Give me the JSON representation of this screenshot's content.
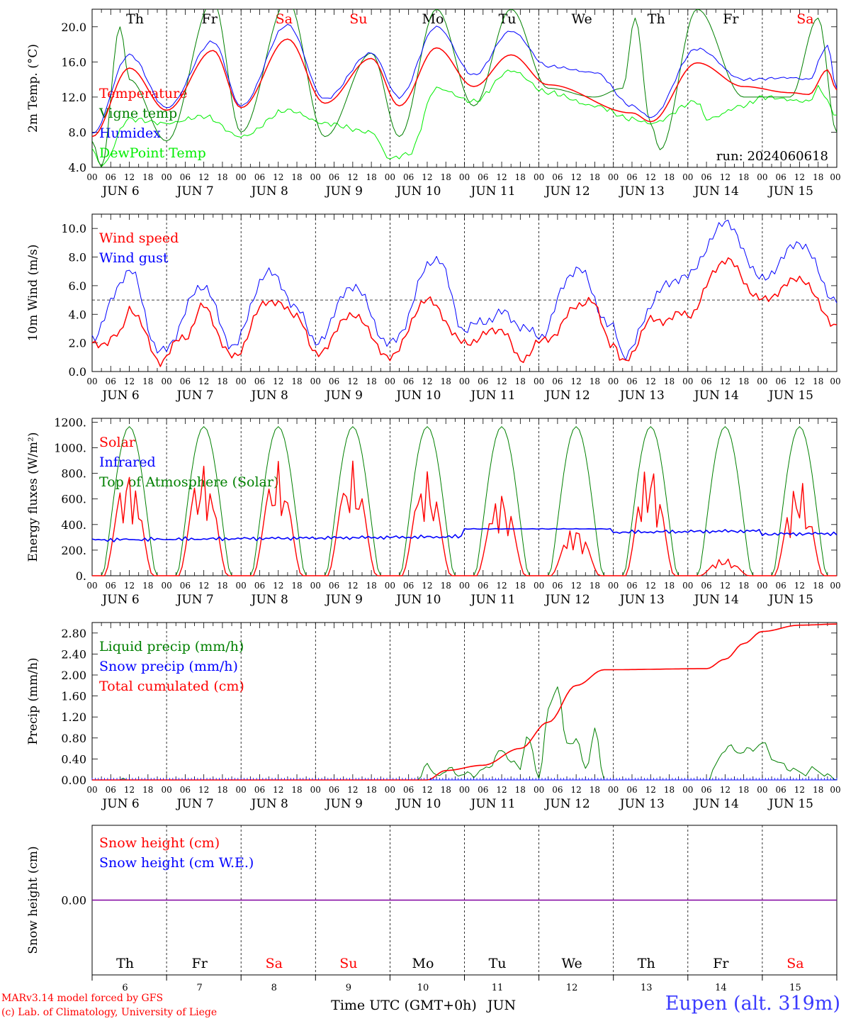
{
  "days": [
    {
      "label": "Th",
      "color": "#000000",
      "num": "6"
    },
    {
      "label": "Fr",
      "color": "#000000",
      "num": "7"
    },
    {
      "label": "Sa",
      "color": "#ff0000",
      "num": "8"
    },
    {
      "label": "Su",
      "color": "#ff0000",
      "num": "9"
    },
    {
      "label": "Mo",
      "color": "#000000",
      "num": "10"
    },
    {
      "label": "Tu",
      "color": "#000000",
      "num": "11"
    },
    {
      "label": "We",
      "color": "#000000",
      "num": "12"
    },
    {
      "label": "Th",
      "color": "#000000",
      "num": "13"
    },
    {
      "label": "Fr",
      "color": "#000000",
      "num": "14"
    },
    {
      "label": "Sa",
      "color": "#ff0000",
      "num": "15"
    }
  ],
  "hour_ticks": [
    "00",
    "06",
    "12",
    "18"
  ],
  "end_tick": "00",
  "date_labels": [
    "JUN  6",
    "JUN  7",
    "JUN  8",
    "JUN  9",
    "JUN 10",
    "JUN 11",
    "JUN 12",
    "JUN 13",
    "JUN 14",
    "JUN 15"
  ],
  "x_axis_label": "Time UTC (GMT+0h)",
  "x_axis_month": "JUN",
  "run_label": "run: 2024060618",
  "footer": {
    "credit_line1": "MARv3.14 model forced by GFS",
    "credit_line2": "(c) Lab. of Climatology, University of Liege",
    "station": "Eupen (alt. 319m)"
  },
  "chart_data": [
    {
      "type": "line",
      "ylabel": "2m Temp. (°C)",
      "ylim": [
        4,
        22
      ],
      "yticks": [
        "4.0",
        "8.0",
        "12.0",
        "16.0",
        "20.0"
      ],
      "x_hours_step": 3,
      "grid": false,
      "legend_placement": "left",
      "series": [
        {
          "name": "Temperature",
          "color": "#ff0000",
          "anchors": [
            [
              0,
              7.5
            ],
            [
              12,
              15.3
            ],
            [
              24,
              10.5
            ],
            [
              39,
              17.3
            ],
            [
              48,
              10.8
            ],
            [
              63,
              18.6
            ],
            [
              75,
              11.3
            ],
            [
              90,
              16.4
            ],
            [
              99,
              11.0
            ],
            [
              111,
              17.6
            ],
            [
              123,
              13.2
            ],
            [
              135,
              16.8
            ],
            [
              147,
              13.4
            ],
            [
              174,
              10.2
            ],
            [
              180,
              9.2
            ],
            [
              195,
              15.9
            ],
            [
              210,
              13.2
            ],
            [
              225,
              12.5
            ],
            [
              231,
              12.3
            ],
            [
              237,
              15.1
            ],
            [
              240,
              12.8
            ]
          ]
        },
        {
          "name": "Vigne temp",
          "color": "#008000",
          "anchors": [
            [
              0,
              7.0
            ],
            [
              3,
              4.0
            ],
            [
              9,
              20.0
            ],
            [
              12,
              14.0
            ],
            [
              24,
              7.0
            ],
            [
              39,
              23.0
            ],
            [
              48,
              8.0
            ],
            [
              63,
              23.0
            ],
            [
              75,
              7.5
            ],
            [
              90,
              17.0
            ],
            [
              99,
              7.5
            ],
            [
              111,
              22.0
            ],
            [
              123,
              11.0
            ],
            [
              135,
              22.0
            ],
            [
              147,
              13.0
            ],
            [
              162,
              12.0
            ],
            [
              171,
              13.0
            ],
            [
              175,
              21.0
            ],
            [
              180,
              9.0
            ],
            [
              183,
              6.0
            ],
            [
              195,
              22.0
            ],
            [
              210,
              12.0
            ],
            [
              225,
              12.0
            ],
            [
              234,
              21.0
            ],
            [
              240,
              8.0
            ]
          ]
        },
        {
          "name": "Humidex",
          "color": "#0000ff",
          "anchors": [
            [
              0,
              7.8
            ],
            [
              12,
              16.8
            ],
            [
              24,
              10.8
            ],
            [
              39,
              18.3
            ],
            [
              48,
              11.0
            ],
            [
              63,
              20.2
            ],
            [
              75,
              11.8
            ],
            [
              90,
              17.0
            ],
            [
              99,
              12.0
            ],
            [
              111,
              20.0
            ],
            [
              123,
              14.5
            ],
            [
              135,
              19.5
            ],
            [
              147,
              15.5
            ],
            [
              162,
              14.8
            ],
            [
              174,
              11.0
            ],
            [
              180,
              9.7
            ],
            [
              195,
              17.5
            ],
            [
              210,
              14.0
            ],
            [
              225,
              14.2
            ],
            [
              231,
              14.0
            ],
            [
              237,
              17.8
            ],
            [
              240,
              13.0
            ]
          ]
        },
        {
          "name": "DewPoint Temp",
          "color": "#00ee00",
          "anchors": [
            [
              0,
              6.0
            ],
            [
              3,
              4.2
            ],
            [
              12,
              9.5
            ],
            [
              24,
              9.0
            ],
            [
              36,
              9.8
            ],
            [
              48,
              7.5
            ],
            [
              63,
              10.5
            ],
            [
              75,
              9.0
            ],
            [
              90,
              8.0
            ],
            [
              96,
              5.0
            ],
            [
              102,
              5.5
            ],
            [
              111,
              13.0
            ],
            [
              123,
              11.5
            ],
            [
              135,
              15.0
            ],
            [
              147,
              12.5
            ],
            [
              162,
              11.0
            ],
            [
              174,
              9.5
            ],
            [
              180,
              9.0
            ],
            [
              195,
              11.5
            ],
            [
              198,
              9.5
            ],
            [
              210,
              11.0
            ],
            [
              216,
              12.0
            ],
            [
              231,
              11.5
            ],
            [
              234,
              13.0
            ],
            [
              240,
              10.0
            ]
          ]
        }
      ]
    },
    {
      "type": "line",
      "ylabel": "10m Wind (m/s)",
      "ylim": [
        0,
        11
      ],
      "yticks": [
        "0.0",
        "2.0",
        "4.0",
        "6.0",
        "8.0",
        "10.0"
      ],
      "reference_line": 5,
      "x_hours_step": 1,
      "grid": false,
      "legend_placement": "left",
      "series": [
        {
          "name": "Wind speed",
          "color": "#ff0000",
          "anchors": [
            [
              0,
              1.8
            ],
            [
              9,
              2.5
            ],
            [
              12,
              4.5
            ],
            [
              22,
              0.8
            ],
            [
              30,
              2.5
            ],
            [
              36,
              4.5
            ],
            [
              45,
              1.0
            ],
            [
              57,
              5.0
            ],
            [
              66,
              4.0
            ],
            [
              72,
              1.2
            ],
            [
              84,
              4.0
            ],
            [
              96,
              1.0
            ],
            [
              108,
              5.0
            ],
            [
              120,
              2.0
            ],
            [
              132,
              3.0
            ],
            [
              138,
              0.8
            ],
            [
              144,
              2.0
            ],
            [
              160,
              5.0
            ],
            [
              168,
              2.0
            ],
            [
              171,
              0.5
            ],
            [
              180,
              3.5
            ],
            [
              192,
              4.0
            ],
            [
              204,
              7.8
            ],
            [
              216,
              5.0
            ],
            [
              228,
              6.5
            ],
            [
              240,
              3.2
            ]
          ]
        },
        {
          "name": "Wind gust",
          "color": "#0000ff",
          "anchors": [
            [
              0,
              2.5
            ],
            [
              12,
              7.0
            ],
            [
              22,
              1.3
            ],
            [
              36,
              6.0
            ],
            [
              45,
              1.8
            ],
            [
              57,
              7.0
            ],
            [
              66,
              4.5
            ],
            [
              72,
              2.0
            ],
            [
              84,
              6.0
            ],
            [
              96,
              1.9
            ],
            [
              111,
              8.0
            ],
            [
              120,
              3.0
            ],
            [
              132,
              4.0
            ],
            [
              144,
              2.5
            ],
            [
              156,
              7.2
            ],
            [
              168,
              3.0
            ],
            [
              171,
              1.2
            ],
            [
              185,
              6.0
            ],
            [
              192,
              6.8
            ],
            [
              204,
              10.4
            ],
            [
              216,
              6.5
            ],
            [
              228,
              9.0
            ],
            [
              240,
              5.0
            ]
          ]
        }
      ]
    },
    {
      "type": "line",
      "ylabel": "Energy fluxes (W/m²)",
      "ylim": [
        0,
        1230
      ],
      "yticks": [
        "0.",
        "200.",
        "400.",
        "600.",
        "800.",
        "1000.",
        "1200."
      ],
      "solar_peaks": [
        850,
        890,
        900,
        900,
        840,
        680,
        400,
        900,
        140,
        760
      ],
      "infrared_level": {
        "start": 270,
        "end": 320,
        "max": 370
      },
      "x_hours_step": 1,
      "grid": false,
      "legend_placement": "left",
      "series": [
        {
          "name": "Solar",
          "color": "#ff0000"
        },
        {
          "name": "Infrared",
          "color": "#0000ff"
        },
        {
          "name": "Top of Atmosphere (Solar)",
          "color": "#008000",
          "peak": 1165
        }
      ]
    },
    {
      "type": "line",
      "ylabel": "Precip (mm/h)",
      "ylim": [
        0,
        3.0
      ],
      "yticks": [
        "0.00",
        "0.40",
        "0.80",
        "1.20",
        "1.60",
        "2.00",
        "2.40",
        "2.80"
      ],
      "x_hours_step": 1,
      "grid": false,
      "legend_placement": "left",
      "series": [
        {
          "name": "Liquid precip (mm/h)",
          "color": "#008000",
          "anchors": [
            [
              0,
              0
            ],
            [
              9,
              0
            ],
            [
              10,
              0.05
            ],
            [
              11,
              0
            ],
            [
              105,
              0
            ],
            [
              108,
              0.4
            ],
            [
              110,
              0.05
            ],
            [
              114,
              0.15
            ],
            [
              120,
              0.1
            ],
            [
              126,
              0.2
            ],
            [
              132,
              0.5
            ],
            [
              138,
              0.2
            ],
            [
              140,
              0.9
            ],
            [
              144,
              0.1
            ],
            [
              147,
              1.3
            ],
            [
              150,
              1.8
            ],
            [
              153,
              0.6
            ],
            [
              156,
              0.8
            ],
            [
              159,
              0.2
            ],
            [
              162,
              1.0
            ],
            [
              165,
              0.0
            ],
            [
              198,
              0
            ],
            [
              204,
              0.6
            ],
            [
              210,
              0.5
            ],
            [
              216,
              0.7
            ],
            [
              222,
              0.3
            ],
            [
              228,
              0.1
            ],
            [
              234,
              0.2
            ],
            [
              240,
              0
            ]
          ]
        },
        {
          "name": "Snow precip (mm/h)",
          "color": "#0000ff",
          "anchors": [
            [
              0,
              0
            ],
            [
              240,
              0
            ]
          ]
        },
        {
          "name": "Total cumulated (cm)",
          "color": "#ff0000",
          "anchors": [
            [
              0,
              0
            ],
            [
              108,
              0
            ],
            [
              114,
              0.18
            ],
            [
              126,
              0.28
            ],
            [
              138,
              0.6
            ],
            [
              147,
              1.1
            ],
            [
              156,
              1.8
            ],
            [
              165,
              2.1
            ],
            [
              198,
              2.12
            ],
            [
              204,
              2.3
            ],
            [
              210,
              2.6
            ],
            [
              216,
              2.83
            ],
            [
              228,
              2.95
            ],
            [
              240,
              2.97
            ]
          ]
        }
      ]
    },
    {
      "type": "line",
      "ylabel": "Snow height (cm)",
      "ylim": [
        -1,
        1
      ],
      "yticks": [
        "0.00"
      ],
      "x_hours_step": 1,
      "grid": false,
      "legend_placement": "left",
      "series": [
        {
          "name": "Snow height (cm)",
          "color": "#ff0000",
          "anchors": [
            [
              0,
              0
            ],
            [
              240,
              0
            ]
          ]
        },
        {
          "name": "Snow height (cm W.E.)",
          "color": "#0000ff",
          "anchors": [
            [
              0,
              0
            ],
            [
              240,
              0
            ]
          ]
        }
      ]
    }
  ]
}
